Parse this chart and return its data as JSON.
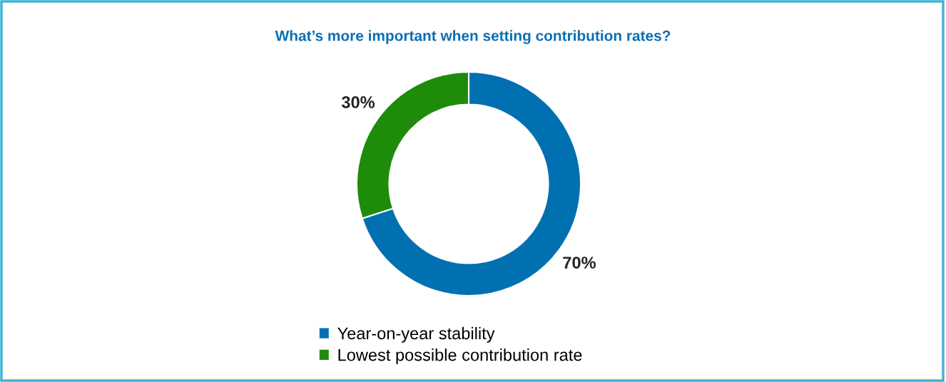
{
  "chart_data": {
    "type": "donut",
    "title": "What’s more important when setting contribution rates?",
    "categories": [
      "Year-on-year stability",
      "Lowest possible contribution rate"
    ],
    "values": [
      70,
      30
    ],
    "colors": [
      "#0070b0",
      "#1e8c0a"
    ],
    "value_labels": [
      "70%",
      "30%"
    ],
    "legend": "bottom"
  }
}
